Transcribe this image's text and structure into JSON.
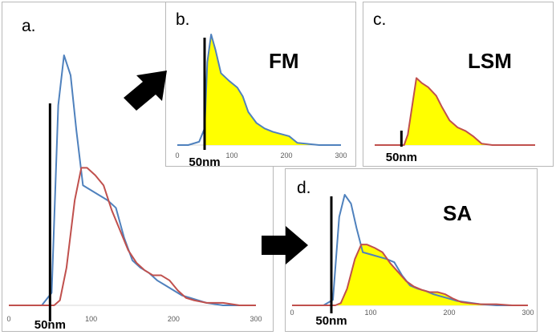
{
  "colors": {
    "blue": "#4f81bd",
    "red": "#c0504d",
    "fill": "#ffff00",
    "marker": "#000000"
  },
  "panels": [
    {
      "key": "a",
      "label": "a.",
      "title": "",
      "marker_label": "50nm"
    },
    {
      "key": "b",
      "label": "b.",
      "title": "FM",
      "marker_label": "50nm"
    },
    {
      "key": "c",
      "label": "c.",
      "title": "LSM",
      "marker_label": "50nm"
    },
    {
      "key": "d",
      "label": "d.",
      "title": "SA",
      "marker_label": "50nm"
    }
  ],
  "chart_data": [
    {
      "panel": "a",
      "type": "line",
      "title": "",
      "xlabel": "",
      "ylabel": "",
      "xlim": [
        0,
        300
      ],
      "ylim": [
        0,
        100
      ],
      "xticks": [
        "0",
        "100",
        "200",
        "300"
      ],
      "marker_x": 50,
      "series": [
        {
          "name": "blue",
          "color": "#4f81bd",
          "x": [
            0,
            20,
            40,
            52,
            60,
            67,
            75,
            82,
            90,
            100,
            110,
            120,
            130,
            140,
            150,
            160,
            170,
            180,
            190,
            200,
            210,
            220,
            240,
            260,
            280,
            300
          ],
          "y": [
            0,
            0,
            0,
            5,
            80,
            100,
            92,
            70,
            48,
            46,
            44,
            42,
            39,
            27,
            18,
            15,
            13,
            10,
            8,
            6,
            4,
            3,
            1,
            0,
            0,
            0
          ]
        },
        {
          "name": "red",
          "color": "#c0504d",
          "x": [
            0,
            20,
            40,
            55,
            62,
            70,
            80,
            88,
            95,
            105,
            115,
            125,
            135,
            145,
            155,
            165,
            175,
            185,
            195,
            205,
            215,
            225,
            240,
            260,
            280,
            300
          ],
          "y": [
            0,
            0,
            0,
            0,
            2,
            15,
            42,
            55,
            55,
            52,
            48,
            38,
            30,
            22,
            17,
            14,
            12,
            12,
            10,
            6,
            3,
            2,
            1,
            1,
            0,
            0
          ]
        }
      ]
    },
    {
      "panel": "b",
      "type": "area",
      "title": "FM",
      "xlim": [
        0,
        300
      ],
      "ylim": [
        0,
        100
      ],
      "xticks": [
        "0",
        "100",
        "200",
        "300"
      ],
      "marker_x": 50,
      "series": [
        {
          "name": "blue",
          "color": "#4f81bd",
          "fill": "#ffff00",
          "x": [
            0,
            20,
            40,
            50,
            55,
            62,
            70,
            80,
            95,
            110,
            120,
            130,
            145,
            160,
            175,
            190,
            205,
            220,
            240,
            260,
            280,
            300
          ],
          "y": [
            0,
            0,
            3,
            15,
            75,
            100,
            86,
            65,
            58,
            52,
            44,
            30,
            20,
            15,
            12,
            10,
            8,
            2,
            1,
            0,
            0,
            0
          ]
        }
      ]
    },
    {
      "panel": "c",
      "type": "area",
      "title": "LSM",
      "xlim": [
        0,
        300
      ],
      "ylim": [
        0,
        100
      ],
      "xticks": [],
      "marker_x": 50,
      "series": [
        {
          "name": "red",
          "color": "#c0504d",
          "fill": "#ffff00",
          "x": [
            0,
            20,
            40,
            55,
            62,
            70,
            78,
            88,
            100,
            115,
            125,
            140,
            155,
            170,
            185,
            200,
            220,
            240,
            260,
            280,
            300
          ],
          "y": [
            0,
            0,
            0,
            0,
            15,
            55,
            95,
            88,
            82,
            70,
            55,
            35,
            25,
            20,
            12,
            2,
            0,
            0,
            0,
            0,
            0
          ]
        }
      ]
    },
    {
      "panel": "d",
      "type": "area",
      "title": "SA",
      "xlim": [
        0,
        300
      ],
      "ylim": [
        0,
        100
      ],
      "xticks": [
        "0",
        "100",
        "200",
        "300"
      ],
      "marker_x": 50,
      "series": [
        {
          "name": "blue",
          "color": "#4f81bd",
          "x": [
            0,
            20,
            40,
            52,
            60,
            67,
            75,
            82,
            90,
            100,
            110,
            120,
            130,
            140,
            150,
            160,
            170,
            180,
            190,
            200,
            210,
            220,
            240,
            260,
            280,
            300
          ],
          "y": [
            0,
            0,
            0,
            5,
            80,
            100,
            92,
            70,
            48,
            46,
            44,
            42,
            39,
            27,
            18,
            15,
            13,
            10,
            8,
            6,
            4,
            3,
            1,
            0,
            0,
            0
          ]
        },
        {
          "name": "red",
          "color": "#c0504d",
          "fill": "#ffff00",
          "x": [
            0,
            20,
            40,
            55,
            62,
            70,
            80,
            88,
            95,
            105,
            115,
            125,
            135,
            145,
            155,
            165,
            175,
            185,
            195,
            205,
            215,
            225,
            240,
            260,
            280,
            300
          ],
          "y": [
            0,
            0,
            0,
            0,
            2,
            15,
            42,
            55,
            55,
            52,
            48,
            38,
            30,
            22,
            17,
            14,
            12,
            12,
            10,
            6,
            3,
            2,
            1,
            1,
            0,
            0
          ]
        }
      ]
    }
  ]
}
